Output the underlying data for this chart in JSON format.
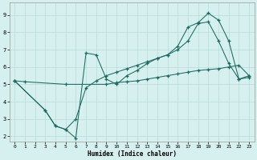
{
  "xlabel": "Humidex (Indice chaleur)",
  "bg_color": "#d6f0ef",
  "grid_color": "#b8dbd9",
  "line_color": "#1a6b5e",
  "xlim": [
    -0.5,
    23.5
  ],
  "ylim": [
    1.7,
    9.7
  ],
  "xticks": [
    0,
    1,
    2,
    3,
    4,
    5,
    6,
    7,
    8,
    9,
    10,
    11,
    12,
    13,
    14,
    15,
    16,
    17,
    18,
    19,
    20,
    21,
    22,
    23
  ],
  "yticks": [
    2,
    3,
    4,
    5,
    6,
    7,
    8,
    9
  ],
  "line1_x": [
    0,
    1,
    5,
    9,
    10,
    11,
    12,
    13,
    14,
    15,
    16,
    17,
    18,
    19,
    20,
    21,
    22,
    23
  ],
  "line1_y": [
    5.2,
    5.15,
    5.0,
    5.0,
    5.1,
    5.15,
    5.2,
    5.3,
    5.4,
    5.5,
    5.6,
    5.7,
    5.8,
    5.85,
    5.9,
    6.0,
    6.1,
    5.5
  ],
  "line2_x": [
    0,
    3,
    4,
    5,
    6,
    7,
    8,
    9,
    10,
    11,
    12,
    13,
    14,
    15,
    16,
    17,
    18,
    19,
    20,
    21,
    22,
    23
  ],
  "line2_y": [
    5.2,
    3.5,
    2.6,
    2.4,
    1.9,
    6.8,
    6.7,
    5.3,
    5.0,
    5.5,
    5.8,
    6.2,
    6.5,
    6.7,
    7.2,
    8.3,
    8.55,
    9.1,
    8.7,
    7.5,
    5.3,
    5.4
  ],
  "line3_x": [
    0,
    3,
    4,
    5,
    6,
    7,
    8,
    9,
    10,
    11,
    12,
    13,
    14,
    15,
    16,
    17,
    18,
    19,
    20,
    21,
    22,
    23
  ],
  "line3_y": [
    5.2,
    3.5,
    2.6,
    2.4,
    3.0,
    4.8,
    5.2,
    5.5,
    5.7,
    5.9,
    6.1,
    6.3,
    6.5,
    6.7,
    7.0,
    7.5,
    8.5,
    8.6,
    7.5,
    6.2,
    5.3,
    5.5
  ]
}
